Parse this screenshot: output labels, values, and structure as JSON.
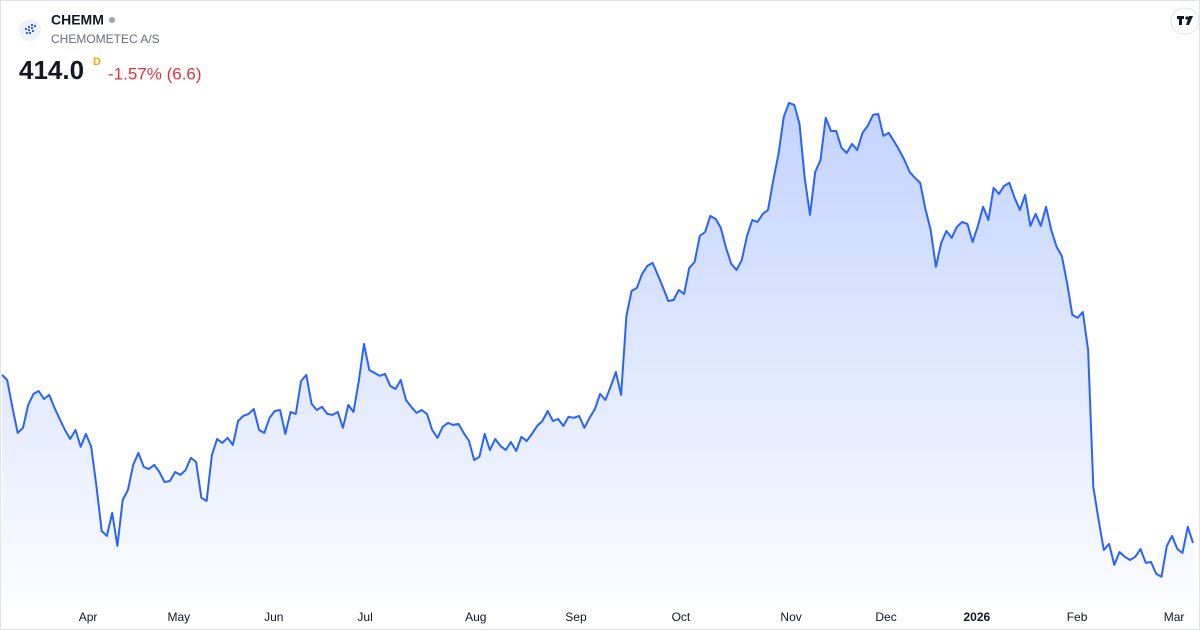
{
  "chart_data": {
    "type": "area",
    "symbol": "CHEMM",
    "company": "CHEMOMETEC A/S",
    "last_price": "414.0",
    "interval": "D",
    "change": "-1.57% (6.6)",
    "color": "#2962ff",
    "values": [
      482.9,
      480.8,
      469.4,
      459.1,
      461.2,
      470.6,
      475.1,
      476.3,
      473.0,
      474.7,
      469.4,
      464.8,
      460.3,
      456.6,
      460.3,
      453.4,
      458.7,
      453.4,
      437.4,
      418.9,
      416.9,
      426.3,
      412.8,
      431.6,
      435.7,
      446.0,
      450.9,
      445.2,
      444.3,
      446.0,
      443.1,
      439.0,
      439.4,
      443.1,
      441.9,
      443.9,
      448.9,
      447.2,
      432.5,
      431.2,
      450.1,
      456.6,
      455.0,
      457.1,
      454.2,
      464.0,
      466.1,
      466.9,
      468.9,
      460.3,
      459.1,
      465.3,
      468.1,
      468.5,
      458.7,
      467.7,
      466.9,
      480.4,
      482.9,
      471.0,
      468.5,
      469.8,
      466.9,
      466.5,
      467.7,
      461.2,
      470.6,
      467.7,
      480.4,
      495.6,
      484.9,
      483.7,
      482.5,
      483.3,
      478.4,
      477.1,
      480.8,
      472.6,
      469.8,
      467.3,
      468.5,
      466.9,
      460.3,
      457.1,
      461.6,
      463.2,
      462.4,
      462.8,
      459.1,
      455.8,
      448.0,
      449.3,
      458.7,
      452.1,
      456.6,
      453.8,
      452.1,
      455.4,
      451.7,
      457.5,
      455.8,
      458.7,
      462.0,
      464.0,
      468.1,
      464.0,
      464.8,
      462.0,
      465.7,
      465.3,
      466.1,
      461.2,
      465.3,
      468.9,
      475.1,
      472.6,
      478.0,
      484.1,
      474.7,
      507.1,
      517.3,
      518.6,
      524.3,
      527.6,
      528.8,
      523.9,
      518.6,
      513.2,
      513.6,
      517.7,
      516.1,
      526.8,
      529.2,
      539.9,
      541.5,
      548.1,
      546.8,
      543.2,
      535.0,
      528.4,
      525.9,
      530.0,
      539.9,
      546.4,
      545.6,
      548.9,
      550.5,
      562.8,
      573.5,
      588.7,
      594.4,
      593.6,
      585.8,
      563.7,
      548.5,
      566.1,
      571.0,
      588.3,
      582.9,
      582.9,
      576.0,
      573.9,
      577.6,
      575.1,
      582.1,
      585.0,
      589.5,
      589.9,
      580.9,
      582.1,
      578.8,
      575.1,
      571.0,
      566.1,
      563.7,
      561.6,
      550.9,
      542.3,
      527.2,
      537.0,
      541.9,
      539.1,
      543.6,
      545.6,
      544.8,
      537.4,
      544.0,
      551.8,
      546.4,
      559.6,
      557.1,
      560.4,
      561.6,
      555.5,
      550.5,
      556.7,
      544.0,
      548.9,
      544.0,
      551.8,
      542.3,
      535.4,
      531.7,
      520.6,
      507.5,
      506.3,
      508.7,
      493.1,
      437.0,
      423.4,
      411.1,
      413.6,
      405.0,
      410.3,
      408.3,
      407.0,
      408.3,
      411.5,
      405.8,
      406.2,
      401.3,
      400.1,
      412.8,
      416.9,
      411.5,
      409.9,
      420.6,
      414.0
    ],
    "xlim": [
      0,
      227
    ],
    "ylim": [
      390.6,
      636.6
    ],
    "xticks": [
      {
        "value": 16.4,
        "label": "Apr"
      },
      {
        "value": 33.7,
        "label": "May"
      },
      {
        "value": 51.8,
        "label": "Jun"
      },
      {
        "value": 69.2,
        "label": "Jul"
      },
      {
        "value": 90.3,
        "label": "Aug"
      },
      {
        "value": 109.4,
        "label": "Sep"
      },
      {
        "value": 129.4,
        "label": "Oct"
      },
      {
        "value": 150.4,
        "label": "Nov"
      },
      {
        "value": 168.5,
        "label": "Dec"
      },
      {
        "value": 185.8,
        "label": "2026"
      },
      {
        "value": 204.9,
        "label": "Feb"
      },
      {
        "value": 223.4,
        "label": "Mar"
      }
    ],
    "grid": false
  }
}
